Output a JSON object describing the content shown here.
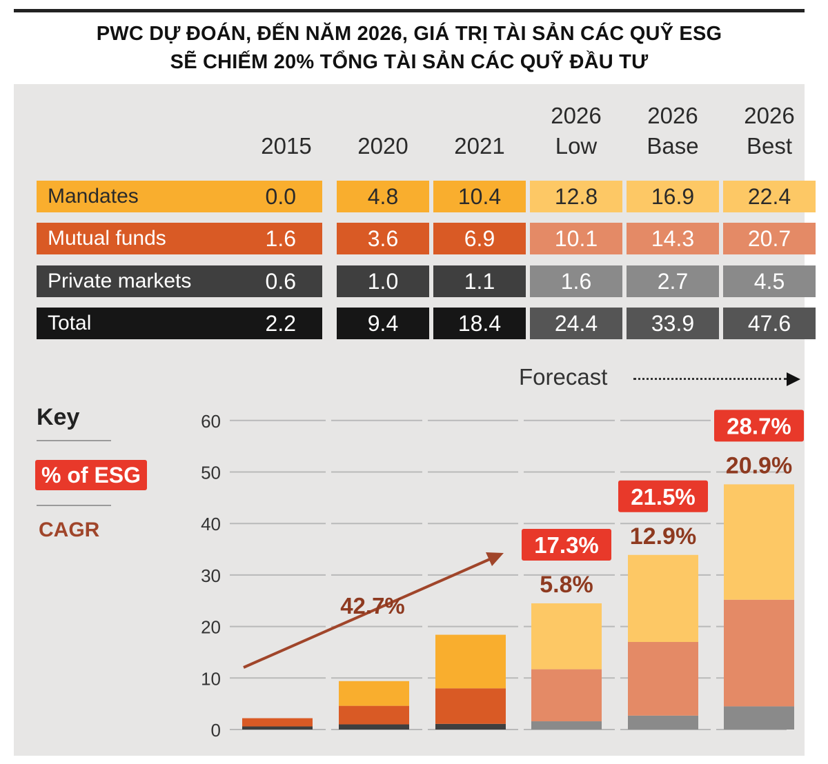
{
  "title_line1": "PWC DỰ ĐOÁN, ĐẾN NĂM 2026, GIÁ TRỊ TÀI SẢN CÁC QUỸ ESG",
  "title_line2": "SẼ CHIẾM 20% TỔNG TÀI SẢN CÁC QUỸ ĐẦU TƯ",
  "columns": [
    {
      "line1": "",
      "line2": "2015"
    },
    {
      "line1": "",
      "line2": "2020"
    },
    {
      "line1": "",
      "line2": "2021"
    },
    {
      "line1": "2026",
      "line2": "Low"
    },
    {
      "line1": "2026",
      "line2": "Base"
    },
    {
      "line1": "2026",
      "line2": "Best"
    }
  ],
  "rows": [
    {
      "label": "Mandates",
      "values": [
        "0.0",
        "4.8",
        "10.4",
        "12.8",
        "16.9",
        "22.4"
      ]
    },
    {
      "label": "Mutual funds",
      "values": [
        "1.6",
        "3.6",
        "6.9",
        "10.1",
        "14.3",
        "20.7"
      ]
    },
    {
      "label": "Private markets",
      "values": [
        "0.6",
        "1.0",
        "1.1",
        "1.6",
        "2.7",
        "4.5"
      ]
    },
    {
      "label": "Total",
      "values": [
        "2.2",
        "9.4",
        "18.4",
        "24.4",
        "33.9",
        "47.6"
      ]
    }
  ],
  "forecast_label": "Forecast",
  "key": {
    "title": "Key",
    "pct_esg": "% of ESG",
    "cagr": "CAGR"
  },
  "colors": {
    "mandates": "#f9ae2e",
    "mandates_forecast": "#fdc865",
    "mutual": "#d95a25",
    "mutual_forecast": "#e48a66",
    "private": "#3f3f3f",
    "private_forecast": "#8a8a8a",
    "total": "#161616",
    "total_forecast": "#555555",
    "badge": "#e8392a",
    "cagr_text": "#8e3a20",
    "panel": "#e7e6e5"
  },
  "chart_data": {
    "type": "bar",
    "stacked": true,
    "categories": [
      "2015",
      "2020",
      "2021",
      "2026 Low",
      "2026 Base",
      "2026 Best"
    ],
    "series": [
      {
        "name": "Private markets",
        "values": [
          0.6,
          1.0,
          1.1,
          1.6,
          2.7,
          4.5
        ]
      },
      {
        "name": "Mutual funds",
        "values": [
          1.6,
          3.6,
          6.9,
          10.1,
          14.3,
          20.7
        ]
      },
      {
        "name": "Mandates",
        "values": [
          0.0,
          4.8,
          10.4,
          12.8,
          16.9,
          22.4
        ]
      }
    ],
    "yticks": [
      0,
      10,
      20,
      30,
      40,
      50,
      60
    ],
    "ylim": [
      0,
      60
    ],
    "pct_esg": [
      null,
      null,
      null,
      "17.3%",
      "21.5%",
      "28.7%"
    ],
    "cagr": [
      null,
      null,
      null,
      "5.8%",
      "12.9%",
      "20.9%"
    ],
    "trend_cagr": "42.7%"
  }
}
